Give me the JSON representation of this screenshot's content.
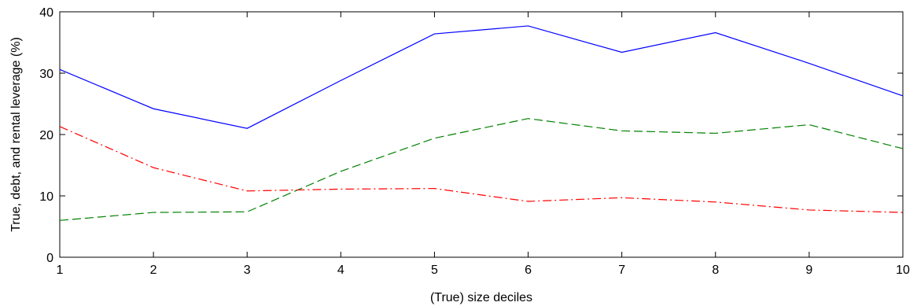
{
  "chart_data": {
    "type": "line",
    "title": "",
    "xlabel": "(True) size deciles",
    "ylabel": "True, debt, and rental leverage (%)",
    "xlim": [
      1,
      10
    ],
    "ylim": [
      0,
      40
    ],
    "x": [
      1,
      2,
      3,
      4,
      5,
      6,
      7,
      8,
      9,
      10
    ],
    "xticks": [
      "1",
      "2",
      "3",
      "4",
      "5",
      "6",
      "7",
      "8",
      "9",
      "10"
    ],
    "yticks": [
      "0",
      "10",
      "20",
      "30",
      "40"
    ],
    "grid": false,
    "legend": "none",
    "series": [
      {
        "values": [
          30.6,
          24.2,
          21.0,
          28.8,
          36.4,
          37.7,
          33.4,
          36.6,
          31.6,
          26.3
        ],
        "color": "#0000ff",
        "dash": "solid"
      },
      {
        "values": [
          6.0,
          7.3,
          7.4,
          14.0,
          19.4,
          22.6,
          20.6,
          20.2,
          21.6,
          17.7
        ],
        "color": "#008000",
        "dash": "dashed"
      },
      {
        "values": [
          21.3,
          14.6,
          10.8,
          11.1,
          11.2,
          9.1,
          9.7,
          9.0,
          7.7,
          7.3
        ],
        "color": "#ff0000",
        "dash": "dashdot"
      }
    ]
  }
}
